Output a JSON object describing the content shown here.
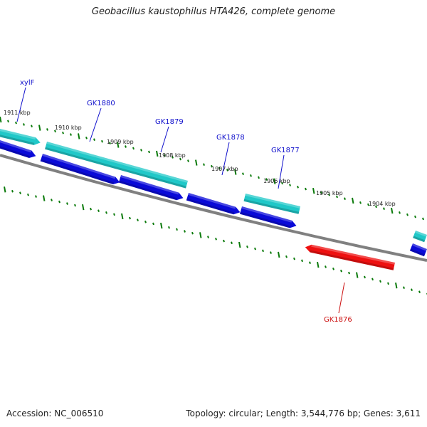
{
  "title": "Geobacillus kaustophilus HTA426, complete genome",
  "footer": {
    "accession": "Accession: NC_006510",
    "topology": "Topology: circular; Length: 3,544,776 bp; Genes: 3,611"
  },
  "colors": {
    "cds_plus_outer": "#20c8c8",
    "cds_plus_inner": "#0a0ad8",
    "cds_minus": "#ee1010",
    "backbone": "#808080",
    "ticks": "#0a7a0a",
    "label_plus": "#1010cc",
    "label_minus": "#cc1010"
  },
  "kbp_labels": [
    "1911 kbp",
    "1910 kbp",
    "1909 kbp",
    "1908 kbp",
    "1907 kbp",
    "1906 kbp",
    "1905 kbp",
    "1904 kbp"
  ],
  "gene_labels": [
    {
      "name": "xylF",
      "strand": "plus"
    },
    {
      "name": "GK1880",
      "strand": "plus"
    },
    {
      "name": "GK1879",
      "strand": "plus"
    },
    {
      "name": "GK1878",
      "strand": "plus"
    },
    {
      "name": "GK1877",
      "strand": "plus"
    },
    {
      "name": "GK1876",
      "strand": "minus"
    }
  ]
}
